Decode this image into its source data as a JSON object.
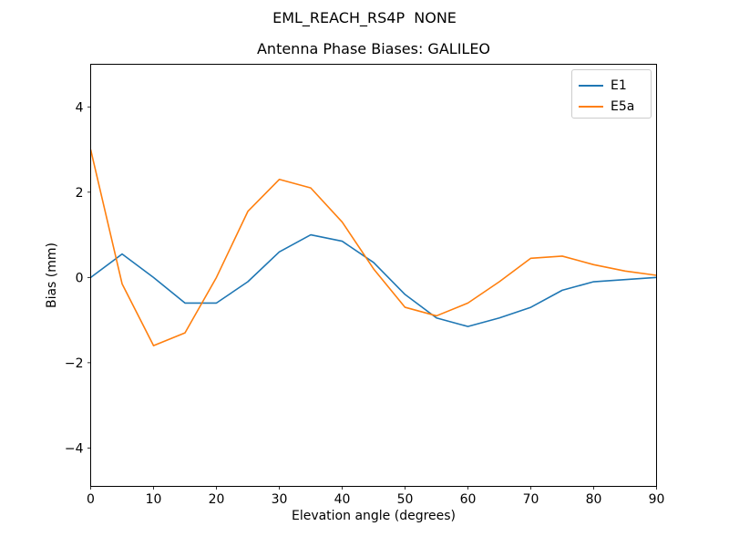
{
  "chart_data": {
    "type": "line",
    "title": "EML_REACH_RS4P  NONE",
    "subtitle": "Antenna Phase Biases: GALILEO",
    "xlabel": "Elevation angle (degrees)",
    "ylabel": "Bias (mm)",
    "x": [
      0,
      5,
      10,
      15,
      20,
      25,
      30,
      35,
      40,
      45,
      50,
      55,
      60,
      65,
      70,
      75,
      80,
      85,
      90
    ],
    "series": [
      {
        "name": "E1",
        "color": "#1f77b4",
        "values": [
          0.0,
          0.55,
          0.0,
          -0.6,
          -0.6,
          -0.1,
          0.6,
          1.0,
          0.85,
          0.35,
          -0.4,
          -0.95,
          -1.15,
          -0.95,
          -0.7,
          -0.3,
          -0.1,
          -0.05,
          0.0
        ]
      },
      {
        "name": "E5a",
        "color": "#ff7f0e",
        "values": [
          3.0,
          -0.15,
          -1.6,
          -1.3,
          0.0,
          1.55,
          2.3,
          2.1,
          1.3,
          0.2,
          -0.7,
          -0.9,
          -0.6,
          -0.1,
          0.45,
          0.5,
          0.3,
          0.15,
          0.05
        ]
      }
    ],
    "xticks": [
      0,
      10,
      20,
      30,
      40,
      50,
      60,
      70,
      80,
      90
    ],
    "yticks": [
      -4,
      -2,
      0,
      2,
      4
    ],
    "xlim": [
      0,
      90
    ],
    "ylim": [
      -4.9,
      5.0
    ],
    "grid": false,
    "legend_position": "upper right",
    "background_color": "#ffffff",
    "axis_color": "#000000",
    "legend_border_color": "#cccccc"
  }
}
